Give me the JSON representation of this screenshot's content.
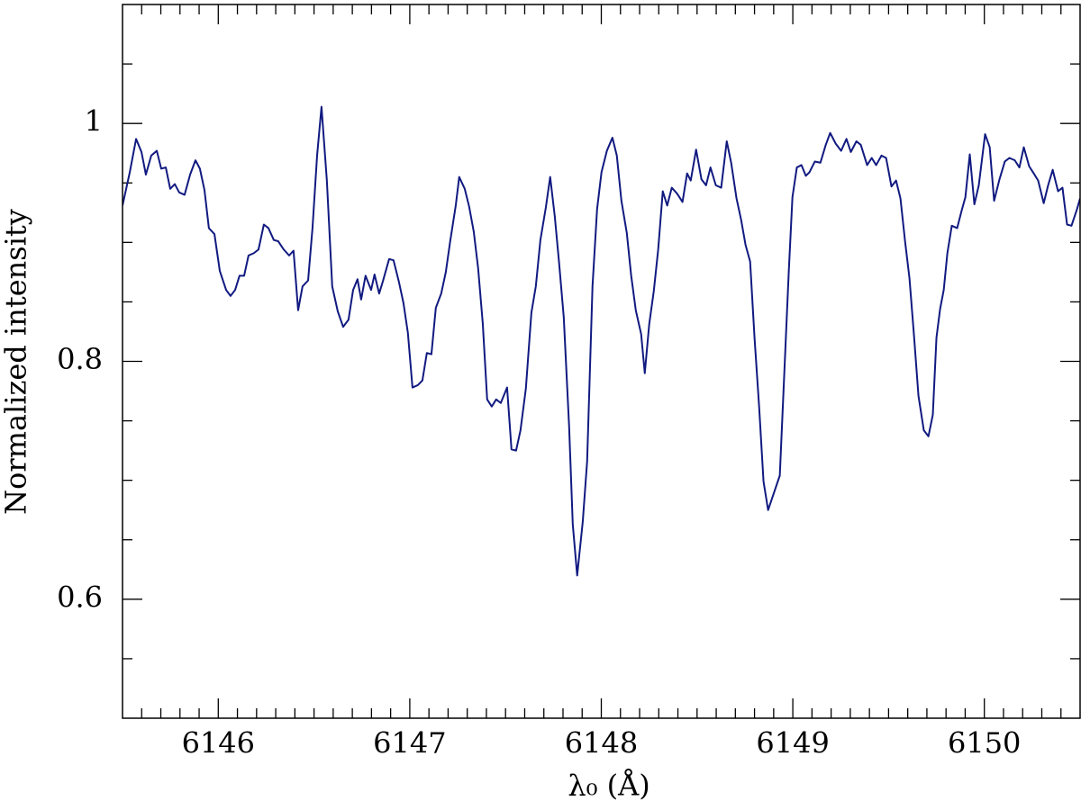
{
  "chart_data": {
    "type": "line",
    "x_label": "λ₀ (Å)",
    "y_label": "Normalized intensity",
    "color": "#111a80",
    "xlim": [
      6145.5,
      6150.5
    ],
    "ylim": [
      0.5,
      1.1
    ],
    "xticks": [
      6146,
      6147,
      6148,
      6149,
      6150
    ],
    "yticks": [
      0.6,
      0.8,
      1
    ],
    "xminorticks": [
      6145.6,
      6145.7,
      6145.8,
      6145.9,
      6146.1,
      6146.2,
      6146.3,
      6146.4,
      6146.5,
      6146.6,
      6146.7,
      6146.8,
      6146.9,
      6147.1,
      6147.2,
      6147.3,
      6147.4,
      6147.5,
      6147.6,
      6147.7,
      6147.8,
      6147.9,
      6148.1,
      6148.2,
      6148.3,
      6148.4,
      6148.5,
      6148.6,
      6148.7,
      6148.8,
      6148.9,
      6149.1,
      6149.2,
      6149.3,
      6149.4,
      6149.5,
      6149.6,
      6149.7,
      6149.8,
      6149.9,
      6150.1,
      6150.2,
      6150.3,
      6150.4
    ],
    "yminorticks": [
      0.55,
      0.65,
      0.7,
      0.75,
      0.85,
      0.9,
      0.95,
      1.05
    ],
    "x": [
      6145.5,
      6145.538,
      6145.571,
      6145.599,
      6145.622,
      6145.65,
      6145.679,
      6145.702,
      6145.726,
      6145.749,
      6145.773,
      6145.796,
      6145.824,
      6145.853,
      6145.881,
      6145.904,
      6145.928,
      6145.951,
      6145.98,
      6146.008,
      6146.041,
      6146.064,
      6146.088,
      6146.111,
      6146.135,
      6146.158,
      6146.186,
      6146.21,
      6146.238,
      6146.262,
      6146.29,
      6146.313,
      6146.342,
      6146.37,
      6146.393,
      6146.417,
      6146.44,
      6146.469,
      6146.492,
      6146.516,
      6146.539,
      6146.567,
      6146.595,
      6146.624,
      6146.652,
      6146.68,
      6146.704,
      6146.727,
      6146.746,
      6146.769,
      6146.798,
      6146.816,
      6146.84,
      6146.859,
      6146.892,
      6146.915,
      6146.943,
      6146.967,
      6146.99,
      6147.014,
      6147.042,
      6147.066,
      6147.089,
      6147.113,
      6147.136,
      6147.164,
      6147.188,
      6147.211,
      6147.24,
      6147.258,
      6147.287,
      6147.31,
      6147.334,
      6147.357,
      6147.381,
      6147.404,
      6147.428,
      6147.451,
      6147.475,
      6147.508,
      6147.531,
      6147.555,
      6147.578,
      6147.606,
      6147.635,
      6147.658,
      6147.682,
      6147.71,
      6147.733,
      6147.757,
      6147.78,
      6147.804,
      6147.832,
      6147.851,
      6147.874,
      6147.903,
      6147.926,
      6147.954,
      6147.978,
      6148.001,
      6148.029,
      6148.058,
      6148.081,
      6148.105,
      6148.133,
      6148.156,
      6148.18,
      6148.208,
      6148.227,
      6148.25,
      6148.274,
      6148.297,
      6148.321,
      6148.344,
      6148.368,
      6148.396,
      6148.424,
      6148.448,
      6148.467,
      6148.495,
      6148.523,
      6148.547,
      6148.57,
      6148.598,
      6148.626,
      6148.655,
      6148.678,
      6148.706,
      6148.73,
      6148.753,
      6148.777,
      6148.8,
      6148.824,
      6148.847,
      6148.871,
      6148.89,
      6148.913,
      6148.932,
      6148.956,
      6148.979,
      6148.998,
      6149.021,
      6149.045,
      6149.068,
      6149.087,
      6149.115,
      6149.144,
      6149.172,
      6149.195,
      6149.224,
      6149.252,
      6149.28,
      6149.303,
      6149.332,
      6149.355,
      6149.388,
      6149.412,
      6149.435,
      6149.463,
      6149.487,
      6149.515,
      6149.539,
      6149.562,
      6149.586,
      6149.609,
      6149.633,
      6149.656,
      6149.684,
      6149.708,
      6149.731,
      6149.75,
      6149.769,
      6149.788,
      6149.807,
      6149.83,
      6149.858,
      6149.882,
      6149.901,
      6149.924,
      6149.948,
      6149.971,
      6150.004,
      6150.028,
      6150.051,
      6150.079,
      6150.107,
      6150.131,
      6150.159,
      6150.183,
      6150.206,
      6150.234,
      6150.258,
      6150.281,
      6150.31,
      6150.333,
      6150.357,
      6150.385,
      6150.408,
      6150.432,
      6150.455,
      6150.484,
      6150.5
    ],
    "values": [
      0.931,
      0.959,
      0.987,
      0.976,
      0.957,
      0.973,
      0.977,
      0.962,
      0.963,
      0.945,
      0.949,
      0.942,
      0.94,
      0.957,
      0.969,
      0.962,
      0.944,
      0.912,
      0.907,
      0.876,
      0.86,
      0.855,
      0.86,
      0.872,
      0.872,
      0.889,
      0.891,
      0.894,
      0.915,
      0.912,
      0.902,
      0.901,
      0.894,
      0.889,
      0.893,
      0.843,
      0.863,
      0.868,
      0.912,
      0.973,
      1.014,
      0.952,
      0.863,
      0.842,
      0.829,
      0.835,
      0.86,
      0.869,
      0.852,
      0.872,
      0.86,
      0.873,
      0.857,
      0.867,
      0.886,
      0.885,
      0.867,
      0.849,
      0.824,
      0.778,
      0.78,
      0.784,
      0.807,
      0.806,
      0.845,
      0.857,
      0.875,
      0.901,
      0.931,
      0.955,
      0.945,
      0.93,
      0.909,
      0.878,
      0.832,
      0.768,
      0.762,
      0.768,
      0.765,
      0.778,
      0.726,
      0.725,
      0.742,
      0.777,
      0.841,
      0.863,
      0.902,
      0.929,
      0.955,
      0.922,
      0.882,
      0.837,
      0.745,
      0.663,
      0.62,
      0.665,
      0.716,
      0.863,
      0.928,
      0.959,
      0.977,
      0.988,
      0.973,
      0.935,
      0.908,
      0.872,
      0.843,
      0.823,
      0.79,
      0.831,
      0.859,
      0.894,
      0.943,
      0.931,
      0.946,
      0.941,
      0.934,
      0.958,
      0.952,
      0.978,
      0.953,
      0.948,
      0.963,
      0.948,
      0.946,
      0.985,
      0.967,
      0.937,
      0.919,
      0.898,
      0.884,
      0.82,
      0.762,
      0.699,
      0.675,
      0.684,
      0.695,
      0.704,
      0.792,
      0.876,
      0.938,
      0.963,
      0.965,
      0.956,
      0.959,
      0.968,
      0.967,
      0.982,
      0.992,
      0.983,
      0.977,
      0.987,
      0.976,
      0.985,
      0.982,
      0.965,
      0.971,
      0.965,
      0.973,
      0.971,
      0.947,
      0.952,
      0.937,
      0.901,
      0.87,
      0.821,
      0.771,
      0.742,
      0.737,
      0.755,
      0.82,
      0.844,
      0.86,
      0.891,
      0.914,
      0.912,
      0.927,
      0.938,
      0.974,
      0.932,
      0.948,
      0.991,
      0.98,
      0.935,
      0.953,
      0.968,
      0.971,
      0.969,
      0.963,
      0.98,
      0.964,
      0.958,
      0.952,
      0.933,
      0.948,
      0.961,
      0.943,
      0.946,
      0.915,
      0.914,
      0.928,
      0.937
    ]
  }
}
